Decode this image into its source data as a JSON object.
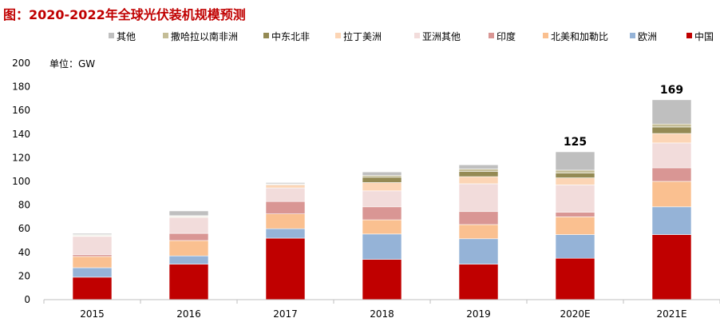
{
  "chart_data": {
    "type": "bar",
    "stacked": true,
    "title": "图：2020-2022年全球光伏装机规模预测",
    "unit_label": "单位：GW",
    "xlabel": "",
    "ylabel": "",
    "ylim": [
      0,
      200
    ],
    "yticks": [
      0,
      20,
      40,
      60,
      80,
      100,
      120,
      140,
      160,
      180,
      200
    ],
    "grid": false,
    "legend_placement": "top",
    "categories": [
      "2015",
      "2016",
      "2017",
      "2018",
      "2019",
      "2020E",
      "2021E"
    ],
    "series": [
      {
        "name": "中国",
        "color": "#c00000",
        "values": [
          19,
          30,
          52,
          34,
          30,
          35,
          55
        ]
      },
      {
        "name": "欧洲",
        "color": "#95b3d7",
        "values": [
          8,
          7,
          8,
          21.5,
          21.5,
          20,
          23.5
        ]
      },
      {
        "name": "北美和加勒比",
        "color": "#fac090",
        "values": [
          9.5,
          13,
          12.5,
          12,
          12,
          15,
          21.5
        ]
      },
      {
        "name": "印度",
        "color": "#d99694",
        "values": [
          1.5,
          6,
          10.5,
          11,
          11,
          4,
          11.5
        ]
      },
      {
        "name": "亚洲其他",
        "color": "#f2dcdb",
        "values": [
          15.5,
          13.5,
          11.5,
          13.5,
          23.5,
          23,
          21
        ]
      },
      {
        "name": "拉丁美洲",
        "color": "#fcd5b5",
        "values": [
          0.5,
          0.5,
          2.5,
          7,
          6,
          6,
          8
        ]
      },
      {
        "name": "中东北非",
        "color": "#948a54",
        "values": [
          0.5,
          0.5,
          0.5,
          4.5,
          4.5,
          4,
          5.5
        ]
      },
      {
        "name": "撒哈拉以南非洲",
        "color": "#c4bd97",
        "values": [
          0.5,
          0.5,
          0.5,
          1.5,
          2,
          2.5,
          2.5
        ]
      },
      {
        "name": "其他",
        "color": "#bfbfbf",
        "values": [
          1,
          4,
          1,
          3,
          3.5,
          15.5,
          20.5
        ]
      }
    ],
    "data_labels": [
      {
        "category": "2020E",
        "text": "125"
      },
      {
        "category": "2021E",
        "text": "169"
      }
    ],
    "legend_order": [
      "其他",
      "撒哈拉以南非洲",
      "中东北非",
      "拉丁美洲",
      "亚洲其他",
      "印度",
      "北美和加勒比",
      "欧洲",
      "中国"
    ]
  }
}
